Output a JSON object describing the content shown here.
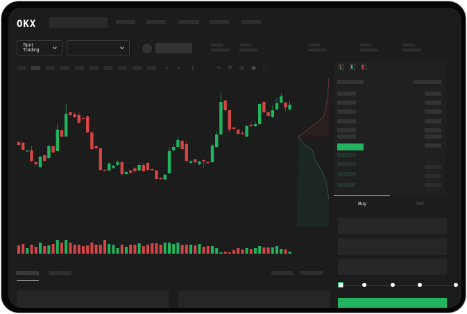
{
  "header": {
    "logo": "OKX"
  },
  "market": {
    "mode_select": "Spot Trading"
  },
  "trade": {
    "tabs": [
      "Buy",
      "Sell"
    ],
    "active_tab": "Buy",
    "leverage_slider_position": 0
  },
  "colors": {
    "up": "#22b35e",
    "down": "#d64545",
    "background": "#1c1c1c"
  },
  "chart_data": {
    "type": "candlestick",
    "candles_ohlc": [
      [
        97,
        93,
        98,
        92
      ],
      [
        96,
        86,
        97,
        85
      ],
      [
        84,
        85,
        85,
        84
      ],
      [
        85,
        70,
        91,
        68
      ],
      [
        68,
        65,
        69,
        63
      ],
      [
        61,
        76,
        77,
        59
      ],
      [
        78,
        70,
        79,
        69
      ],
      [
        74,
        91,
        93,
        73
      ],
      [
        91,
        82,
        92,
        81
      ],
      [
        84,
        115,
        124,
        84
      ],
      [
        114,
        105,
        115,
        104
      ],
      [
        105,
        138,
        152,
        105
      ],
      [
        140,
        136,
        141,
        135
      ],
      [
        137,
        133,
        140,
        132
      ],
      [
        136,
        125,
        140,
        124
      ],
      [
        132,
        131,
        133,
        130
      ],
      [
        134,
        111,
        136,
        110
      ],
      [
        111,
        87,
        112,
        86
      ],
      [
        91,
        88,
        92,
        86
      ],
      [
        88,
        57,
        89,
        55
      ],
      [
        57,
        56,
        58,
        55
      ],
      [
        56,
        66,
        68,
        56
      ],
      [
        60,
        63,
        64,
        58
      ],
      [
        64,
        68,
        71,
        63
      ],
      [
        68,
        51,
        69,
        48
      ],
      [
        51,
        54,
        55,
        49
      ],
      [
        56,
        53,
        56,
        51
      ],
      [
        59,
        55,
        61,
        53
      ],
      [
        56,
        64,
        66,
        55
      ],
      [
        64,
        55,
        67,
        54
      ],
      [
        67,
        57,
        68,
        55
      ],
      [
        58,
        57,
        59,
        56
      ],
      [
        56,
        44,
        57,
        43
      ],
      [
        45,
        44,
        46,
        43
      ],
      [
        43,
        50,
        51,
        42
      ],
      [
        52,
        84,
        90,
        51
      ],
      [
        85,
        90,
        94,
        84
      ],
      [
        90,
        100,
        105,
        89
      ],
      [
        99,
        87,
        100,
        86
      ],
      [
        94,
        70,
        98,
        68
      ],
      [
        67,
        69,
        71,
        66
      ],
      [
        72,
        68,
        73,
        67
      ],
      [
        65,
        69,
        70,
        64
      ],
      [
        71,
        69,
        72,
        60
      ],
      [
        68,
        67,
        70,
        66
      ],
      [
        68,
        92,
        95,
        67
      ],
      [
        90,
        108,
        113,
        89
      ],
      [
        108,
        155,
        171,
        107
      ],
      [
        157,
        143,
        158,
        141
      ],
      [
        143,
        115,
        144,
        112
      ],
      [
        118,
        116,
        119,
        115
      ],
      [
        115,
        109,
        116,
        108
      ],
      [
        110,
        109,
        113,
        108
      ],
      [
        105,
        120,
        122,
        104
      ],
      [
        122,
        120,
        126,
        119
      ],
      [
        120,
        123,
        127,
        119
      ],
      [
        123,
        152,
        153,
        122
      ],
      [
        155,
        140,
        156,
        139
      ],
      [
        140,
        135,
        141,
        134
      ],
      [
        133,
        143,
        150,
        132
      ],
      [
        144,
        153,
        160,
        143
      ],
      [
        154,
        163,
        168,
        153
      ],
      [
        154,
        147,
        155,
        142
      ],
      [
        144,
        151,
        157,
        143
      ]
    ],
    "volume": [
      12,
      14,
      8,
      13,
      10,
      16,
      11,
      12,
      14,
      20,
      16,
      20,
      16,
      13,
      13,
      11,
      12,
      16,
      13,
      13,
      20,
      14,
      13,
      8,
      13,
      10,
      13,
      13,
      15,
      11,
      13,
      15,
      15,
      13,
      16,
      16,
      14,
      16,
      13,
      13,
      13,
      12,
      14,
      10,
      11,
      11,
      8,
      2,
      3,
      2,
      5,
      8,
      6,
      8,
      7,
      8,
      11,
      9,
      9,
      9,
      11,
      7,
      6,
      3
    ]
  }
}
